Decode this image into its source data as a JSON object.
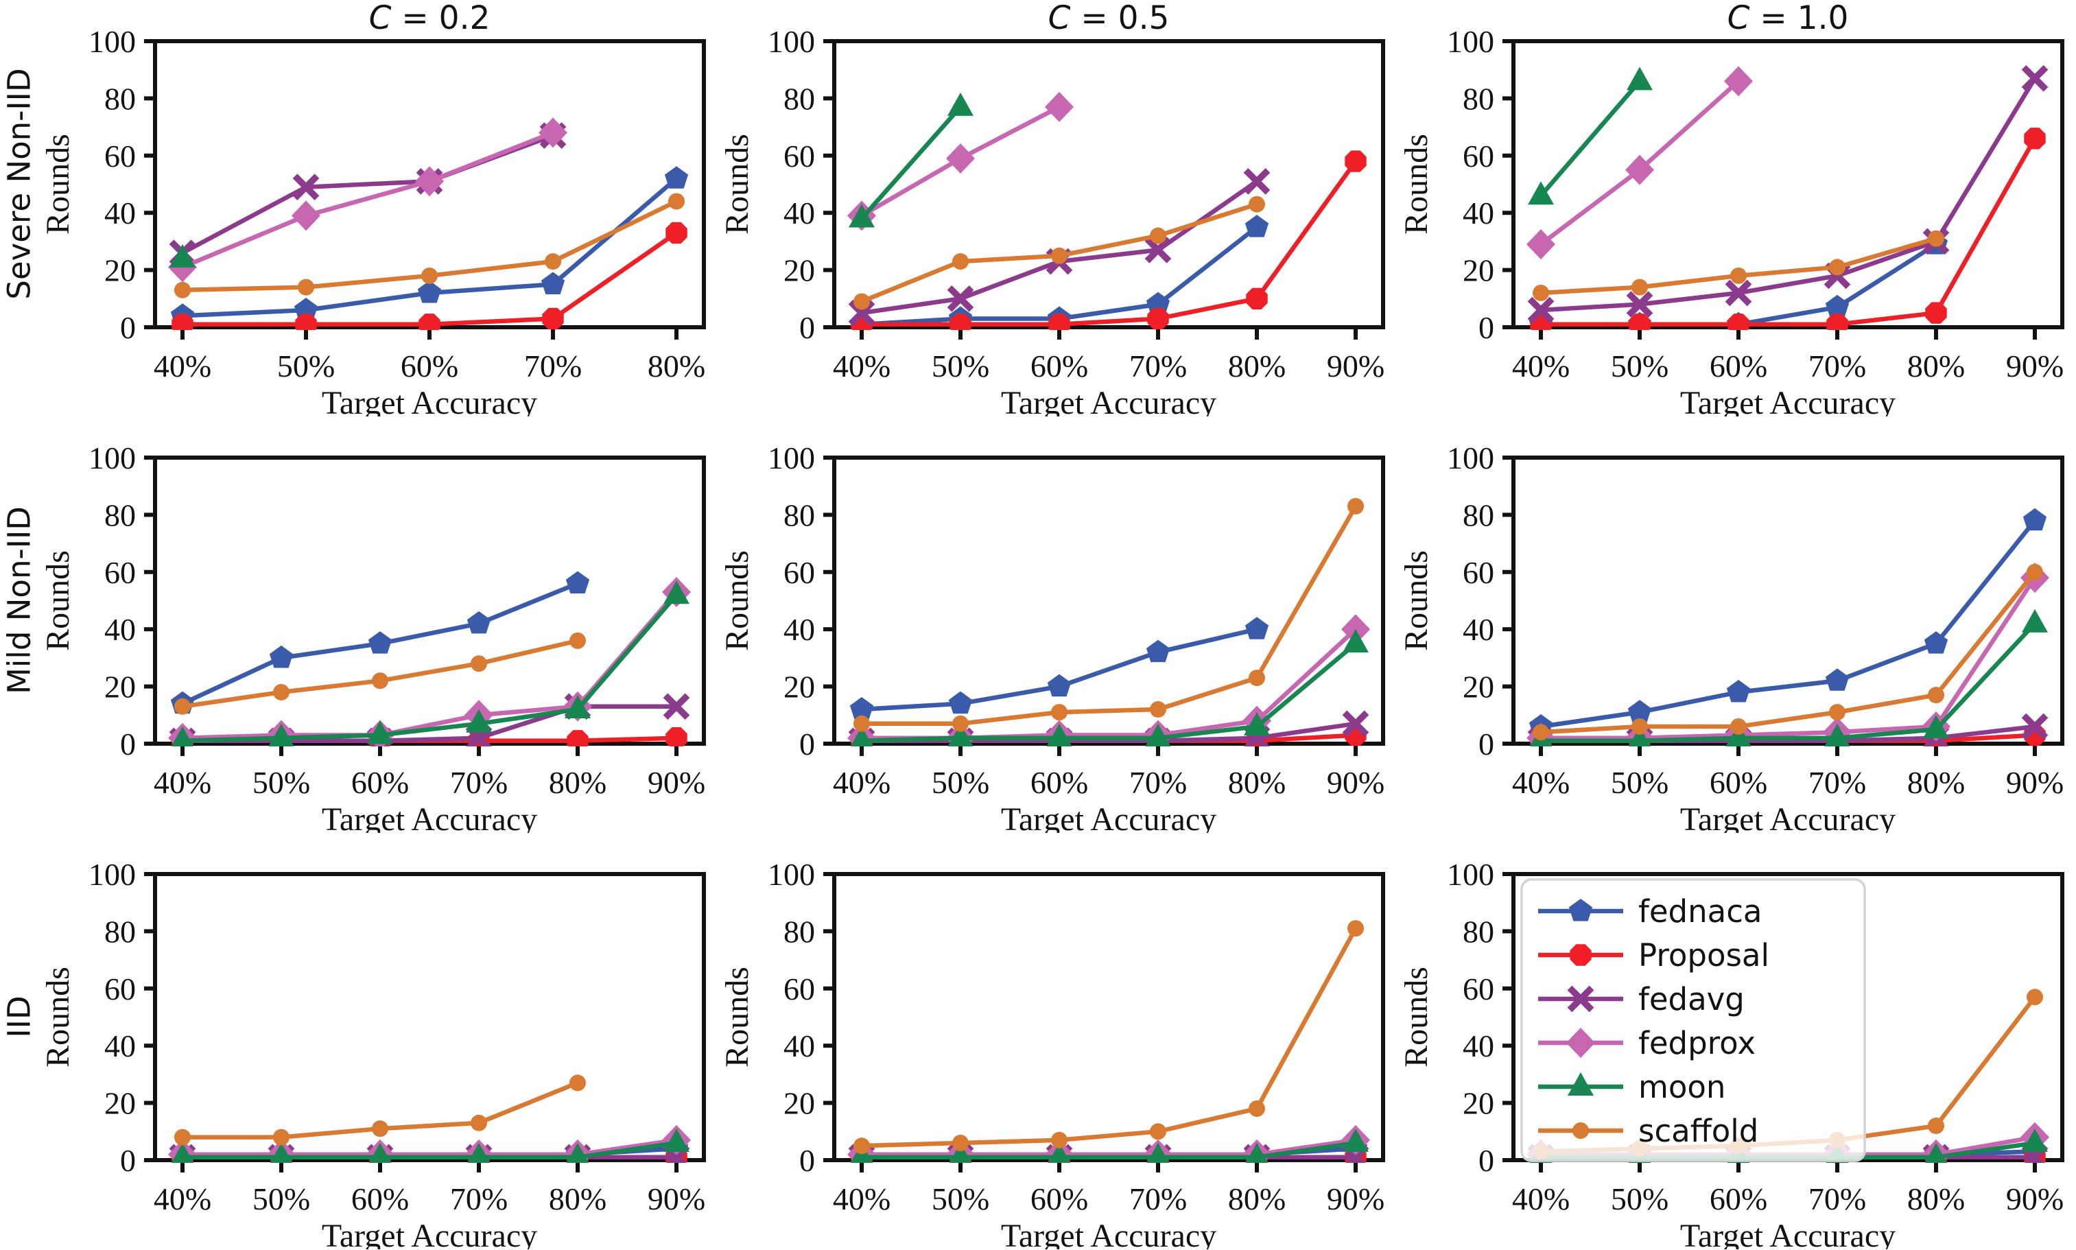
{
  "figure": {
    "row_labels": [
      "Severe Non-IID",
      "Mild Non-IID",
      "IID"
    ],
    "col_titles": [
      "C = 0.2",
      "C = 0.5",
      "C = 1.0"
    ],
    "xlabel": "Target Accuracy",
    "ylabel": "Rounds",
    "yticks": [
      0,
      20,
      40,
      60,
      80,
      100
    ],
    "ylim": [
      0,
      100
    ],
    "axis_color": "#121212",
    "background": "#ffffff",
    "legend_border_color": "#d4d4d4",
    "legend_fill": "rgba(255,255,255,0.8)"
  },
  "series_meta": [
    {
      "name": "fednaca",
      "color": "#3a5ba9",
      "marker": "pentagon"
    },
    {
      "name": "Proposal",
      "color": "#ee1f26",
      "marker": "octagon"
    },
    {
      "name": "fedavg",
      "color": "#8c3b8c",
      "marker": "x"
    },
    {
      "name": "fedprox",
      "color": "#c766b1",
      "marker": "diamond"
    },
    {
      "name": "moon",
      "color": "#178650",
      "marker": "triangle"
    },
    {
      "name": "scaffold",
      "color": "#d87a31",
      "marker": "circle"
    }
  ],
  "legend": {
    "entries": [
      "fednaca",
      "Proposal",
      "fedavg",
      "fedprox",
      "moon",
      "scaffold"
    ],
    "position": "upper-left-of-bottom-right-subplot"
  },
  "chart_data": [
    {
      "type": "line",
      "row_label": "Severe Non-IID",
      "title": "C = 0.2",
      "title_var": "C",
      "title_rest": " = 0.2",
      "xlabel": "Target Accuracy",
      "ylabel": "Rounds",
      "ylim": [
        0,
        100
      ],
      "grid": false,
      "categories": [
        "40%",
        "50%",
        "60%",
        "70%",
        "80%"
      ],
      "series": [
        {
          "name": "fednaca",
          "values": [
            4,
            6,
            12,
            15,
            52
          ]
        },
        {
          "name": "Proposal",
          "values": [
            1,
            1,
            1,
            3,
            33
          ]
        },
        {
          "name": "fedavg",
          "values": [
            26,
            49,
            51,
            67,
            null
          ]
        },
        {
          "name": "fedprox",
          "values": [
            21,
            39,
            51,
            68,
            null
          ]
        },
        {
          "name": "moon",
          "values": [
            24,
            null,
            null,
            null,
            null
          ]
        },
        {
          "name": "scaffold",
          "values": [
            13,
            14,
            18,
            23,
            44
          ]
        }
      ]
    },
    {
      "type": "line",
      "row_label": "Severe Non-IID",
      "title": "C = 0.5",
      "title_var": "C",
      "title_rest": " = 0.5",
      "xlabel": "Target Accuracy",
      "ylabel": "Rounds",
      "ylim": [
        0,
        100
      ],
      "grid": false,
      "categories": [
        "40%",
        "50%",
        "60%",
        "70%",
        "80%",
        "90%"
      ],
      "series": [
        {
          "name": "fednaca",
          "values": [
            1,
            3,
            3,
            8,
            35,
            null
          ]
        },
        {
          "name": "Proposal",
          "values": [
            1,
            1,
            1,
            3,
            10,
            58
          ]
        },
        {
          "name": "fedavg",
          "values": [
            5,
            10,
            23,
            27,
            51,
            null
          ]
        },
        {
          "name": "fedprox",
          "values": [
            39,
            59,
            77,
            null,
            null,
            null
          ]
        },
        {
          "name": "moon",
          "values": [
            38,
            77,
            null,
            null,
            null,
            null
          ]
        },
        {
          "name": "scaffold",
          "values": [
            9,
            23,
            25,
            32,
            43,
            null
          ]
        }
      ]
    },
    {
      "type": "line",
      "row_label": "Severe Non-IID",
      "title": "C = 1.0",
      "title_var": "C",
      "title_rest": " = 1.0",
      "xlabel": "Target Accuracy",
      "ylabel": "Rounds",
      "ylim": [
        0,
        100
      ],
      "grid": false,
      "categories": [
        "40%",
        "50%",
        "60%",
        "70%",
        "80%",
        "90%"
      ],
      "series": [
        {
          "name": "fednaca",
          "values": [
            1,
            1,
            1,
            7,
            29,
            null
          ]
        },
        {
          "name": "Proposal",
          "values": [
            1,
            1,
            1,
            1,
            5,
            66
          ]
        },
        {
          "name": "fedavg",
          "values": [
            6,
            8,
            12,
            18,
            30,
            87
          ]
        },
        {
          "name": "fedprox",
          "values": [
            29,
            55,
            86,
            null,
            null,
            null
          ]
        },
        {
          "name": "moon",
          "values": [
            46,
            86,
            null,
            null,
            null,
            null
          ]
        },
        {
          "name": "scaffold",
          "values": [
            12,
            14,
            18,
            21,
            31,
            null
          ]
        }
      ]
    },
    {
      "type": "line",
      "row_label": "Mild Non-IID",
      "title": "",
      "xlabel": "Target Accuracy",
      "ylabel": "Rounds",
      "ylim": [
        0,
        100
      ],
      "grid": false,
      "categories": [
        "40%",
        "50%",
        "60%",
        "70%",
        "80%",
        "90%"
      ],
      "series": [
        {
          "name": "fednaca",
          "values": [
            14,
            30,
            35,
            42,
            56,
            null
          ]
        },
        {
          "name": "Proposal",
          "values": [
            1,
            1,
            1,
            1,
            1,
            2
          ]
        },
        {
          "name": "fedavg",
          "values": [
            1,
            1,
            1,
            2,
            13,
            13
          ]
        },
        {
          "name": "fedprox",
          "values": [
            2,
            3,
            3,
            10,
            13,
            53
          ]
        },
        {
          "name": "moon",
          "values": [
            1,
            2,
            3,
            7,
            12,
            52
          ]
        },
        {
          "name": "scaffold",
          "values": [
            13,
            18,
            22,
            28,
            36,
            null
          ]
        }
      ]
    },
    {
      "type": "line",
      "row_label": "Mild Non-IID",
      "title": "",
      "xlabel": "Target Accuracy",
      "ylabel": "Rounds",
      "ylim": [
        0,
        100
      ],
      "grid": false,
      "categories": [
        "40%",
        "50%",
        "60%",
        "70%",
        "80%",
        "90%"
      ],
      "series": [
        {
          "name": "fednaca",
          "values": [
            12,
            14,
            20,
            32,
            40,
            null
          ]
        },
        {
          "name": "Proposal",
          "values": [
            1,
            1,
            1,
            1,
            1,
            3
          ]
        },
        {
          "name": "fedavg",
          "values": [
            1,
            1,
            1,
            1,
            2,
            7
          ]
        },
        {
          "name": "fedprox",
          "values": [
            2,
            2,
            3,
            3,
            8,
            40
          ]
        },
        {
          "name": "moon",
          "values": [
            1,
            2,
            2,
            2,
            6,
            35
          ]
        },
        {
          "name": "scaffold",
          "values": [
            7,
            7,
            11,
            12,
            23,
            83
          ]
        }
      ]
    },
    {
      "type": "line",
      "row_label": "Mild Non-IID",
      "title": "",
      "xlabel": "Target Accuracy",
      "ylabel": "Rounds",
      "ylim": [
        0,
        100
      ],
      "grid": false,
      "categories": [
        "40%",
        "50%",
        "60%",
        "70%",
        "80%",
        "90%"
      ],
      "series": [
        {
          "name": "fednaca",
          "values": [
            6,
            11,
            18,
            22,
            35,
            78
          ]
        },
        {
          "name": "Proposal",
          "values": [
            1,
            1,
            1,
            1,
            1,
            3
          ]
        },
        {
          "name": "fedavg",
          "values": [
            1,
            1,
            1,
            1,
            2,
            6
          ]
        },
        {
          "name": "fedprox",
          "values": [
            2,
            2,
            3,
            4,
            6,
            58
          ]
        },
        {
          "name": "moon",
          "values": [
            1,
            1,
            2,
            2,
            5,
            42
          ]
        },
        {
          "name": "scaffold",
          "values": [
            4,
            6,
            6,
            11,
            17,
            60
          ]
        }
      ]
    },
    {
      "type": "line",
      "row_label": "IID",
      "title": "",
      "xlabel": "Target Accuracy",
      "ylabel": "Rounds",
      "ylim": [
        0,
        100
      ],
      "grid": false,
      "categories": [
        "40%",
        "50%",
        "60%",
        "70%",
        "80%",
        "90%"
      ],
      "series": [
        {
          "name": "fednaca",
          "values": [
            1,
            1,
            1,
            1,
            2,
            4
          ]
        },
        {
          "name": "Proposal",
          "values": [
            1,
            1,
            1,
            1,
            1,
            1
          ]
        },
        {
          "name": "fedavg",
          "values": [
            1,
            1,
            1,
            1,
            1,
            1
          ]
        },
        {
          "name": "fedprox",
          "values": [
            2,
            2,
            2,
            2,
            2,
            7
          ]
        },
        {
          "name": "moon",
          "values": [
            1,
            1,
            1,
            1,
            1,
            6
          ]
        },
        {
          "name": "scaffold",
          "values": [
            8,
            8,
            11,
            13,
            27,
            null
          ]
        }
      ]
    },
    {
      "type": "line",
      "row_label": "IID",
      "title": "",
      "xlabel": "Target Accuracy",
      "ylabel": "Rounds",
      "ylim": [
        0,
        100
      ],
      "grid": false,
      "categories": [
        "40%",
        "50%",
        "60%",
        "70%",
        "80%",
        "90%"
      ],
      "series": [
        {
          "name": "fednaca",
          "values": [
            1,
            1,
            1,
            1,
            2,
            4
          ]
        },
        {
          "name": "Proposal",
          "values": [
            1,
            1,
            1,
            1,
            1,
            1
          ]
        },
        {
          "name": "fedavg",
          "values": [
            1,
            1,
            1,
            1,
            1,
            1
          ]
        },
        {
          "name": "fedprox",
          "values": [
            2,
            2,
            2,
            2,
            2,
            7
          ]
        },
        {
          "name": "moon",
          "values": [
            1,
            1,
            1,
            1,
            1,
            6
          ]
        },
        {
          "name": "scaffold",
          "values": [
            5,
            6,
            7,
            10,
            18,
            81
          ]
        }
      ]
    },
    {
      "type": "line",
      "row_label": "IID",
      "title": "",
      "xlabel": "Target Accuracy",
      "ylabel": "Rounds",
      "ylim": [
        0,
        100
      ],
      "grid": false,
      "legend": true,
      "categories": [
        "40%",
        "50%",
        "60%",
        "70%",
        "80%",
        "90%"
      ],
      "series": [
        {
          "name": "fednaca",
          "values": [
            1,
            1,
            1,
            1,
            2,
            3
          ]
        },
        {
          "name": "Proposal",
          "values": [
            1,
            1,
            1,
            1,
            1,
            1
          ]
        },
        {
          "name": "fedavg",
          "values": [
            1,
            1,
            1,
            1,
            1,
            1
          ]
        },
        {
          "name": "fedprox",
          "values": [
            2,
            2,
            2,
            2,
            2,
            8
          ]
        },
        {
          "name": "moon",
          "values": [
            1,
            1,
            1,
            1,
            1,
            6
          ]
        },
        {
          "name": "scaffold",
          "values": [
            3,
            4,
            5,
            7,
            12,
            57
          ]
        }
      ]
    }
  ]
}
